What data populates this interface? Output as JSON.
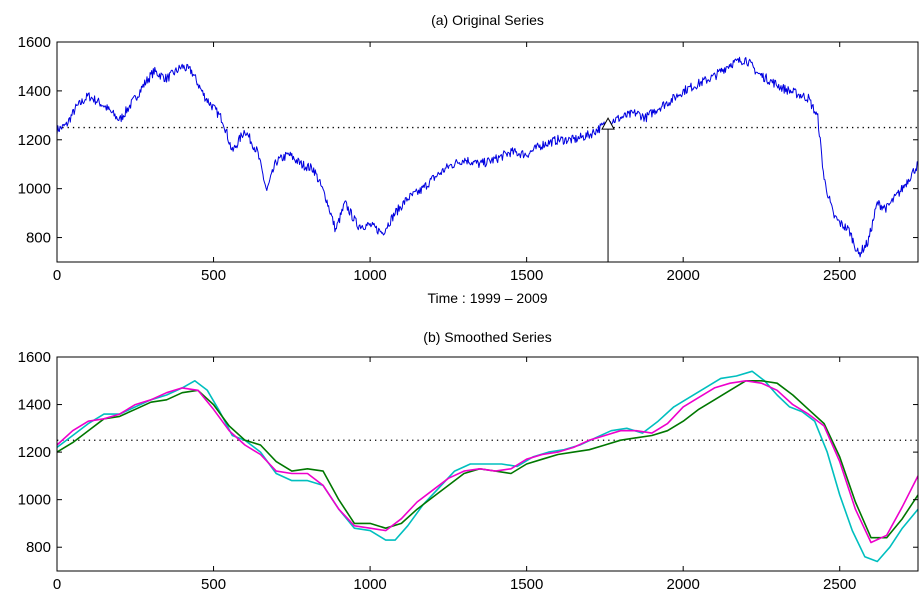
{
  "chart_data": [
    {
      "type": "line",
      "title": "(a)  Original Series",
      "xlabel": "Time : 1999 – 2009",
      "ylabel": "",
      "xlim": [
        0,
        2750
      ],
      "ylim": [
        700,
        1600
      ],
      "xticks": [
        0,
        500,
        1000,
        1500,
        2000,
        2500
      ],
      "yticks": [
        800,
        1000,
        1200,
        1400,
        1600
      ],
      "grid": false,
      "reference_lines": [
        {
          "axis": "y",
          "value": 1250,
          "style": "dotted"
        }
      ],
      "markers": [
        {
          "x": 1760,
          "y": 1260,
          "shape": "triangle",
          "with_vertical_line": true
        }
      ],
      "series": [
        {
          "color": "#0000e0",
          "noisy": true,
          "x": [
            0,
            30,
            60,
            100,
            150,
            200,
            250,
            280,
            310,
            350,
            400,
            430,
            470,
            500,
            530,
            560,
            600,
            640,
            670,
            700,
            740,
            780,
            820,
            860,
            890,
            920,
            960,
            1000,
            1040,
            1080,
            1120,
            1160,
            1200,
            1250,
            1300,
            1350,
            1400,
            1450,
            1500,
            1550,
            1600,
            1650,
            1700,
            1760,
            1800,
            1850,
            1880,
            1920,
            1960,
            2000,
            2050,
            2100,
            2150,
            2200,
            2240,
            2280,
            2320,
            2360,
            2400,
            2430,
            2450,
            2480,
            2500,
            2530,
            2560,
            2590,
            2620,
            2650,
            2700,
            2750
          ],
          "values": [
            1240,
            1260,
            1330,
            1380,
            1340,
            1280,
            1370,
            1430,
            1480,
            1450,
            1500,
            1480,
            1380,
            1330,
            1280,
            1150,
            1240,
            1150,
            990,
            1110,
            1140,
            1100,
            1080,
            960,
            830,
            940,
            850,
            850,
            820,
            900,
            960,
            990,
            1040,
            1090,
            1120,
            1100,
            1120,
            1150,
            1140,
            1180,
            1200,
            1200,
            1220,
            1270,
            1290,
            1310,
            1290,
            1330,
            1360,
            1400,
            1430,
            1460,
            1510,
            1530,
            1470,
            1440,
            1410,
            1390,
            1370,
            1290,
            1040,
            890,
            860,
            830,
            730,
            780,
            940,
            920,
            1000,
            1100
          ]
        }
      ]
    },
    {
      "type": "line",
      "title": "(b)  Smoothed Series",
      "xlabel": "",
      "ylabel": "",
      "xlim": [
        0,
        2750
      ],
      "ylim": [
        700,
        1600
      ],
      "xticks": [
        0,
        500,
        1000,
        1500,
        2000,
        2500
      ],
      "yticks": [
        800,
        1000,
        1200,
        1400,
        1600
      ],
      "grid": false,
      "reference_lines": [
        {
          "axis": "y",
          "value": 1250,
          "style": "dotted"
        }
      ],
      "series": [
        {
          "color": "#00bfbf",
          "x": [
            0,
            50,
            100,
            150,
            200,
            250,
            300,
            350,
            400,
            440,
            480,
            520,
            560,
            600,
            650,
            700,
            750,
            800,
            850,
            900,
            950,
            1000,
            1050,
            1080,
            1120,
            1170,
            1220,
            1270,
            1320,
            1370,
            1420,
            1470,
            1520,
            1570,
            1620,
            1670,
            1720,
            1770,
            1820,
            1870,
            1920,
            1970,
            2020,
            2070,
            2120,
            2170,
            2220,
            2260,
            2300,
            2340,
            2380,
            2420,
            2460,
            2500,
            2540,
            2580,
            2620,
            2660,
            2700,
            2750
          ],
          "values": [
            1220,
            1270,
            1320,
            1360,
            1360,
            1390,
            1420,
            1440,
            1470,
            1500,
            1460,
            1370,
            1270,
            1250,
            1200,
            1110,
            1080,
            1080,
            1060,
            960,
            880,
            870,
            830,
            830,
            890,
            980,
            1050,
            1120,
            1150,
            1150,
            1150,
            1140,
            1180,
            1200,
            1210,
            1230,
            1260,
            1290,
            1300,
            1280,
            1330,
            1390,
            1430,
            1470,
            1510,
            1520,
            1540,
            1500,
            1440,
            1390,
            1370,
            1330,
            1200,
            1020,
            870,
            760,
            740,
            800,
            880,
            960
          ]
        },
        {
          "color": "#007700",
          "x": [
            0,
            50,
            100,
            150,
            200,
            250,
            300,
            350,
            400,
            450,
            500,
            550,
            600,
            650,
            700,
            750,
            800,
            850,
            900,
            950,
            1000,
            1050,
            1100,
            1150,
            1200,
            1250,
            1300,
            1350,
            1400,
            1450,
            1500,
            1550,
            1600,
            1650,
            1700,
            1750,
            1800,
            1850,
            1900,
            1950,
            2000,
            2050,
            2100,
            2150,
            2200,
            2250,
            2300,
            2350,
            2400,
            2450,
            2500,
            2550,
            2600,
            2650,
            2700,
            2750
          ],
          "values": [
            1200,
            1240,
            1290,
            1340,
            1350,
            1380,
            1410,
            1420,
            1450,
            1460,
            1400,
            1310,
            1250,
            1230,
            1160,
            1120,
            1130,
            1120,
            1000,
            900,
            900,
            880,
            900,
            960,
            1010,
            1060,
            1110,
            1130,
            1120,
            1110,
            1150,
            1170,
            1190,
            1200,
            1210,
            1230,
            1250,
            1260,
            1270,
            1290,
            1330,
            1380,
            1420,
            1460,
            1500,
            1500,
            1490,
            1440,
            1380,
            1320,
            1180,
            990,
            840,
            840,
            920,
            1020
          ]
        },
        {
          "color": "#ee00cc",
          "x": [
            0,
            50,
            100,
            150,
            200,
            250,
            300,
            350,
            400,
            450,
            500,
            550,
            600,
            650,
            700,
            750,
            800,
            850,
            900,
            950,
            1000,
            1050,
            1100,
            1150,
            1200,
            1250,
            1300,
            1350,
            1400,
            1450,
            1500,
            1550,
            1600,
            1650,
            1700,
            1750,
            1800,
            1850,
            1900,
            1950,
            2000,
            2050,
            2100,
            2150,
            2200,
            2250,
            2300,
            2350,
            2400,
            2450,
            2500,
            2550,
            2600,
            2650,
            2700,
            2750
          ],
          "values": [
            1230,
            1290,
            1330,
            1340,
            1360,
            1400,
            1420,
            1450,
            1470,
            1460,
            1380,
            1290,
            1230,
            1190,
            1120,
            1110,
            1110,
            1060,
            960,
            890,
            880,
            870,
            920,
            990,
            1040,
            1090,
            1120,
            1130,
            1120,
            1130,
            1170,
            1190,
            1200,
            1220,
            1250,
            1270,
            1290,
            1290,
            1280,
            1320,
            1390,
            1430,
            1470,
            1490,
            1500,
            1490,
            1460,
            1400,
            1360,
            1310,
            1160,
            960,
            820,
            850,
            970,
            1100
          ]
        }
      ]
    }
  ]
}
